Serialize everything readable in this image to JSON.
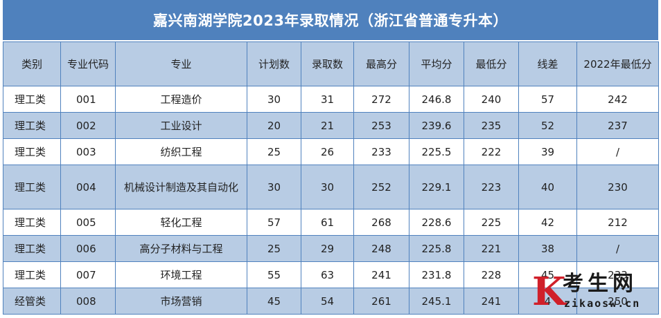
{
  "title": "嘉兴南湖学院2023年录取情况（浙江省普通专升本）",
  "table": {
    "headers": [
      "类别",
      "专业代码",
      "专业",
      "计划数",
      "录取数",
      "最高分",
      "平均分",
      "最低分",
      "线差",
      "2022年最低分"
    ],
    "rows": [
      [
        "理工类",
        "001",
        "工程造价",
        "30",
        "31",
        "272",
        "246.8",
        "240",
        "57",
        "242"
      ],
      [
        "理工类",
        "002",
        "工业设计",
        "20",
        "21",
        "253",
        "239.6",
        "235",
        "52",
        "237"
      ],
      [
        "理工类",
        "003",
        "纺织工程",
        "25",
        "26",
        "233",
        "225.5",
        "222",
        "39",
        "/"
      ],
      [
        "理工类",
        "004",
        "机械设计制造及其自动化",
        "30",
        "30",
        "252",
        "229.1",
        "223",
        "40",
        "230"
      ],
      [
        "理工类",
        "005",
        "轻化工程",
        "57",
        "61",
        "268",
        "228.6",
        "225",
        "42",
        "212"
      ],
      [
        "理工类",
        "006",
        "高分子材料与工程",
        "25",
        "29",
        "248",
        "225.8",
        "221",
        "38",
        "/"
      ],
      [
        "理工类",
        "007",
        "环境工程",
        "55",
        "63",
        "241",
        "231.8",
        "228",
        "45",
        "233"
      ],
      [
        "经管类",
        "008",
        "市场营销",
        "45",
        "54",
        "261",
        "245.1",
        "241",
        "4",
        "250"
      ]
    ]
  },
  "watermark": {
    "logo_letter": "K",
    "name": "考生网",
    "url": "zikaosw.cn",
    "color": "#d0202a"
  },
  "colors": {
    "header_bar": "#4f81bd",
    "header_row": "#b8cce4",
    "stripe_row": "#b8cce4",
    "border": "#4f81bd"
  }
}
